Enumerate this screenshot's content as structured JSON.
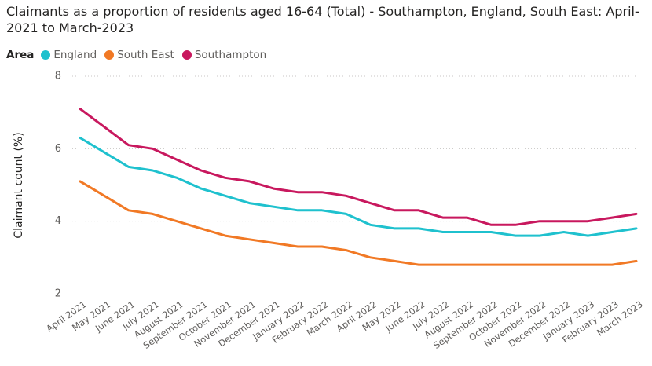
{
  "chart_data": {
    "type": "line",
    "title": "Claimants as a proportion of residents aged 16-64 (Total) - Southampton, England, South East: April-2021 to March-2023",
    "legend_title": "Area",
    "legend_placement": "top-left",
    "xlabel": "",
    "ylabel": "Claimant count (%)",
    "ylim": [
      2,
      8
    ],
    "yticks": [
      "2",
      "4",
      "6",
      "8"
    ],
    "grid": true,
    "categories": [
      "April 2021",
      "May 2021",
      "June 2021",
      "July 2021",
      "August 2021",
      "September 2021",
      "October 2021",
      "November 2021",
      "December 2021",
      "January 2022",
      "February 2022",
      "March 2022",
      "April 2022",
      "May 2022",
      "June 2022",
      "July 2022",
      "August 2022",
      "September 2022",
      "October 2022",
      "November 2022",
      "December 2022",
      "January 2023",
      "February 2023",
      "March 2023"
    ],
    "series": [
      {
        "name": "England",
        "color": "#1fc1ce",
        "values": [
          6.3,
          5.9,
          5.5,
          5.4,
          5.2,
          4.9,
          4.7,
          4.5,
          4.4,
          4.3,
          4.3,
          4.2,
          3.9,
          3.8,
          3.8,
          3.7,
          3.7,
          3.7,
          3.6,
          3.6,
          3.7,
          3.6,
          3.7,
          3.8
        ]
      },
      {
        "name": "South East",
        "color": "#f17925",
        "values": [
          5.1,
          4.7,
          4.3,
          4.2,
          4.0,
          3.8,
          3.6,
          3.5,
          3.4,
          3.3,
          3.3,
          3.2,
          3.0,
          2.9,
          2.8,
          2.8,
          2.8,
          2.8,
          2.8,
          2.8,
          2.8,
          2.8,
          2.8,
          2.9
        ]
      },
      {
        "name": "Southampton",
        "color": "#c8185e",
        "values": [
          7.1,
          6.6,
          6.1,
          6.0,
          5.7,
          5.4,
          5.2,
          5.1,
          4.9,
          4.8,
          4.8,
          4.7,
          4.5,
          4.3,
          4.3,
          4.1,
          4.1,
          3.9,
          3.9,
          4.0,
          4.0,
          4.0,
          4.1,
          4.2
        ]
      }
    ]
  }
}
